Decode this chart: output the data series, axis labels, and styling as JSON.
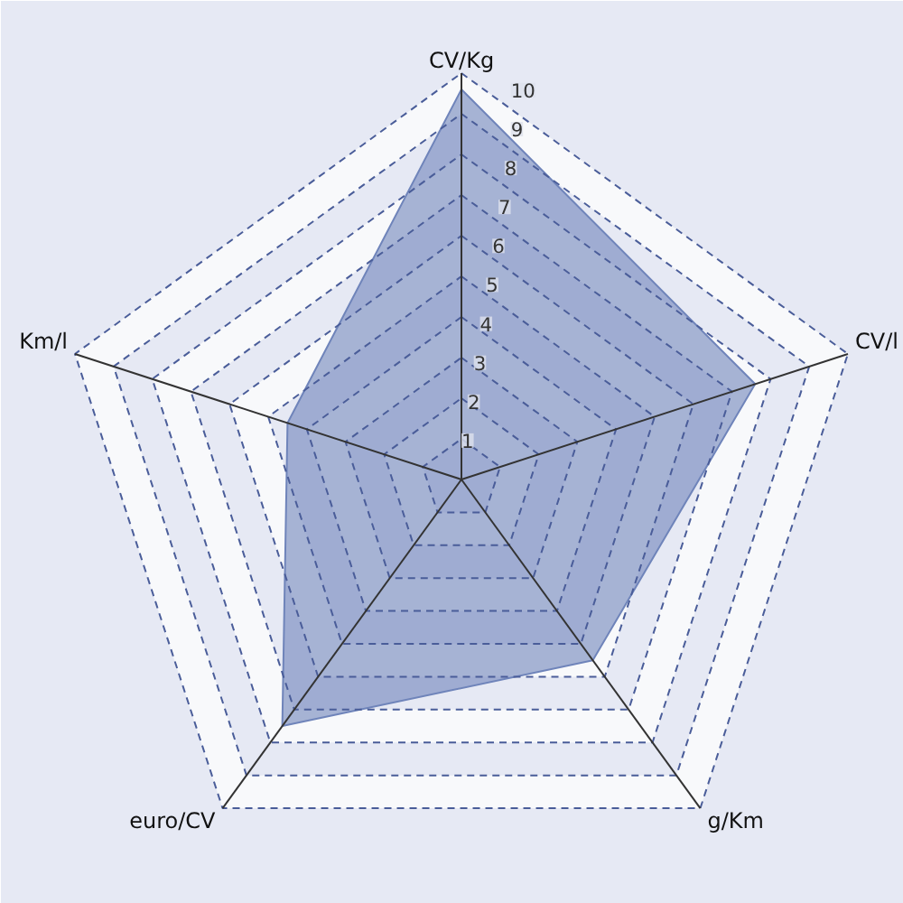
{
  "chart_data": {
    "type": "radar",
    "categories": [
      "CV/Kg",
      "CV/l",
      "g/Km",
      "euro/CV",
      "Km/l"
    ],
    "series": [
      {
        "color": "#6f84ba",
        "values": [
          9.6,
          7.6,
          5.5,
          7.5,
          4.5
        ]
      }
    ],
    "ylim": [
      0,
      10
    ],
    "yticks": [
      1,
      2,
      3,
      4,
      5,
      6,
      7,
      8,
      9,
      10
    ],
    "grid": true,
    "marker": "none",
    "line_style": "solid"
  }
}
